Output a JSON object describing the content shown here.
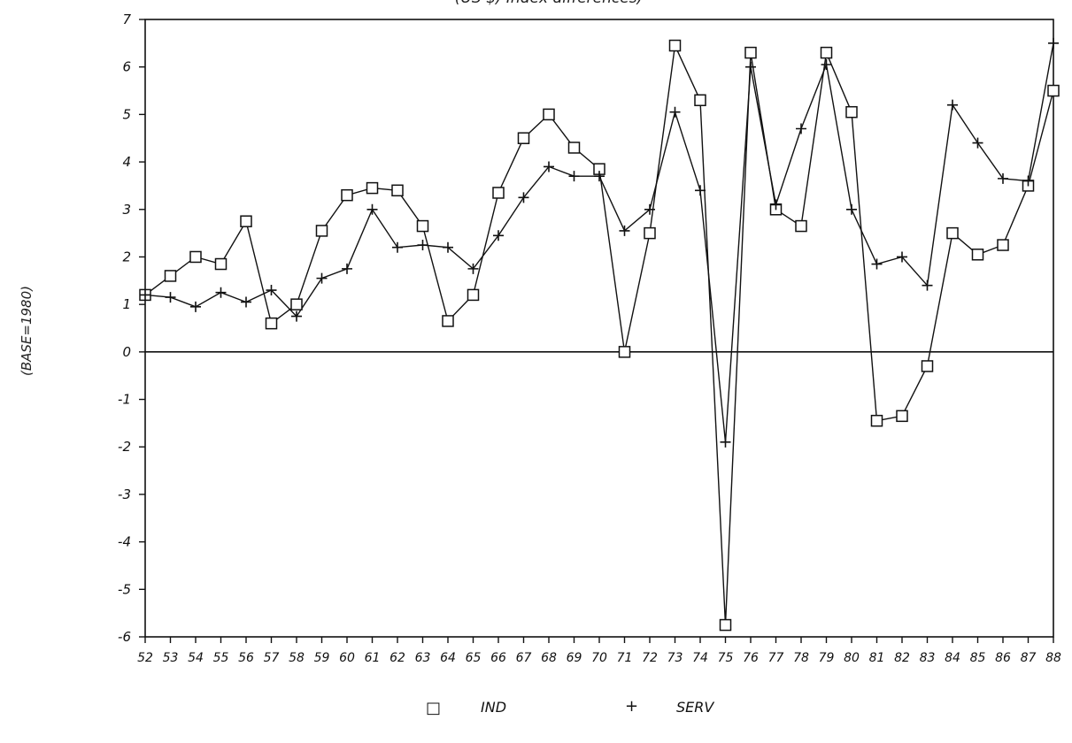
{
  "chart_data": {
    "type": "line",
    "title": "(US $) Index differences)",
    "ylabel": "(BASE=1980)",
    "xlabel": "",
    "ylim": [
      -6,
      7
    ],
    "yticks": [
      7,
      6,
      5,
      4,
      3,
      2,
      1,
      0,
      -1,
      -2,
      -3,
      -4,
      -5,
      -6
    ],
    "ytick_labels": [
      "7",
      "6",
      "5",
      "4",
      "3",
      "2",
      "1",
      "0",
      "-1",
      "-2",
      "-3",
      "-4",
      "-5",
      "-6"
    ],
    "categories": [
      "52",
      "53",
      "54",
      "55",
      "56",
      "57",
      "58",
      "59",
      "60",
      "61",
      "62",
      "63",
      "64",
      "65",
      "66",
      "67",
      "68",
      "69",
      "70",
      "71",
      "72",
      "73",
      "74",
      "75",
      "76",
      "77",
      "78",
      "79",
      "80",
      "81",
      "82",
      "83",
      "84",
      "85",
      "86",
      "87",
      "88"
    ],
    "series": [
      {
        "name": "IND",
        "marker": "square",
        "values": [
          1.2,
          1.6,
          2.0,
          1.85,
          2.75,
          0.6,
          1.0,
          2.55,
          3.3,
          3.45,
          3.4,
          2.65,
          0.65,
          1.2,
          3.35,
          4.5,
          5.0,
          4.3,
          3.85,
          0.0,
          2.5,
          6.45,
          5.3,
          -5.75,
          6.3,
          3.0,
          2.65,
          6.3,
          5.05,
          -1.45,
          -1.35,
          -0.3,
          2.5,
          2.05,
          2.25,
          3.5,
          5.5
        ]
      },
      {
        "name": "SERV",
        "marker": "plus",
        "values": [
          1.2,
          1.15,
          0.95,
          1.25,
          1.05,
          1.3,
          0.75,
          1.55,
          1.75,
          3.0,
          2.2,
          2.25,
          2.2,
          1.75,
          2.45,
          3.25,
          3.9,
          3.7,
          3.7,
          2.55,
          3.0,
          5.05,
          3.4,
          -1.9,
          6.0,
          3.1,
          4.7,
          6.05,
          3.0,
          1.85,
          2.0,
          1.4,
          5.2,
          4.4,
          3.65,
          3.6,
          6.5
        ]
      }
    ],
    "grid": false,
    "legend_position": "bottom-center"
  },
  "legend": {
    "items": [
      {
        "symbol": "□",
        "label": "IND"
      },
      {
        "symbol": "+",
        "label": "SERV"
      }
    ]
  }
}
